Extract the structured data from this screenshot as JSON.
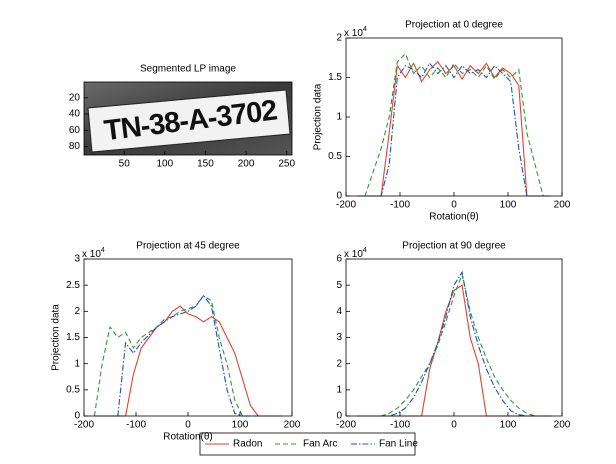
{
  "chart_data": [
    {
      "type": "image",
      "title": "Segmented LP image",
      "image_text": "TN-38-A-3702",
      "xlim": [
        0.5,
        256.5
      ],
      "xticks": [
        50,
        100,
        150,
        200,
        250
      ],
      "ylim": [
        0.5,
        90.5
      ],
      "yticks": [
        20,
        40,
        60,
        80
      ],
      "y_reversed": true
    },
    {
      "type": "line",
      "title": "Projection at 0 degree",
      "xlabel": "Rotation(θ)",
      "ylabel": "Projection data",
      "y_scale_base": "x 10",
      "y_scale_exponent": "4",
      "xlim": [
        -200,
        200
      ],
      "xticks": [
        -200,
        -100,
        0,
        100,
        200
      ],
      "ylim": [
        0,
        20000
      ],
      "yticks": [
        0,
        {
          "value": 5000,
          "label": "0.5"
        },
        {
          "value": 10000,
          "label": "1"
        },
        {
          "value": 15000,
          "label": "1.5"
        },
        {
          "value": 20000,
          "label": "2"
        }
      ],
      "x": [
        -180,
        -165,
        -150,
        -135,
        -120,
        -105,
        -90,
        -75,
        -60,
        -45,
        -30,
        -15,
        0,
        15,
        30,
        45,
        60,
        75,
        90,
        105,
        120,
        135,
        150,
        165,
        180
      ],
      "series": [
        {
          "name": "Radon",
          "color": "#e4422c",
          "linestyle": "-",
          "values": [
            0,
            0,
            0,
            0,
            8000,
            16500,
            15000,
            16800,
            14500,
            16000,
            17000,
            15500,
            16500,
            14800,
            16500,
            15500,
            16800,
            15000,
            16200,
            15500,
            14000,
            0,
            0,
            0,
            0
          ]
        },
        {
          "name": "Fan Arc",
          "color": "#2e9a3c",
          "linestyle": "--",
          "values": [
            0,
            0,
            3000,
            6000,
            10000,
            17000,
            18000,
            15500,
            16500,
            15000,
            16200,
            15000,
            16800,
            15500,
            16000,
            15000,
            16500,
            14800,
            16000,
            15000,
            16000,
            8000,
            4000,
            0,
            0
          ]
        },
        {
          "name": "Fan Line",
          "color": "#2050c0",
          "linestyle": "-.",
          "values": [
            0,
            0,
            0,
            0,
            4000,
            15000,
            16500,
            16000,
            15000,
            16800,
            15500,
            16500,
            15000,
            16500,
            15500,
            16000,
            15000,
            16500,
            15500,
            14500,
            6000,
            0,
            0,
            0,
            0
          ]
        }
      ],
      "legend": "bottom"
    },
    {
      "type": "line",
      "title": "Projection at 45 degree",
      "xlabel": "Rotation(θ)",
      "ylabel": "Projection data",
      "y_scale_base": "x 10",
      "y_scale_exponent": "4",
      "xlim": [
        -200,
        200
      ],
      "xticks": [
        -200,
        -100,
        0,
        100,
        200
      ],
      "ylim": [
        0,
        30000
      ],
      "yticks": [
        0,
        {
          "value": 5000,
          "label": "0.5"
        },
        {
          "value": 10000,
          "label": "1"
        },
        {
          "value": 15000,
          "label": "1.5"
        },
        {
          "value": 20000,
          "label": "2"
        },
        {
          "value": 25000,
          "label": "2.5"
        },
        {
          "value": 30000,
          "label": "3"
        }
      ],
      "x": [
        -180,
        -165,
        -150,
        -135,
        -120,
        -105,
        -90,
        -75,
        -60,
        -45,
        -30,
        -15,
        0,
        15,
        30,
        45,
        60,
        75,
        90,
        105,
        120,
        135,
        150,
        165,
        180
      ],
      "series": [
        {
          "color": "#e4422c",
          "linestyle": "-",
          "values": [
            0,
            0,
            0,
            0,
            0,
            8000,
            13000,
            15000,
            17000,
            18000,
            20000,
            21000,
            19500,
            19000,
            18000,
            19000,
            18000,
            15000,
            12000,
            7000,
            2000,
            0,
            0,
            0,
            0
          ]
        },
        {
          "color": "#2e9a3c",
          "linestyle": "--",
          "values": [
            0,
            10000,
            17000,
            15000,
            16000,
            13000,
            15000,
            16000,
            17000,
            18500,
            19000,
            20000,
            20500,
            21000,
            23000,
            22000,
            15000,
            10000,
            3000,
            0,
            0,
            0,
            0,
            0,
            0
          ]
        },
        {
          "color": "#2050c0",
          "linestyle": "-.",
          "values": [
            0,
            0,
            0,
            0,
            14000,
            12000,
            14000,
            15500,
            17000,
            18000,
            19000,
            19500,
            20000,
            21000,
            23000,
            21000,
            13000,
            5000,
            500,
            0,
            0,
            0,
            0,
            0,
            0
          ]
        }
      ]
    },
    {
      "type": "line",
      "title": "Projection at 90 degree",
      "y_scale_base": "x 10",
      "y_scale_exponent": "4",
      "xlim": [
        -200,
        200
      ],
      "xticks": [
        -200,
        -100,
        0,
        100,
        200
      ],
      "ylim": [
        0,
        60000
      ],
      "yticks": [
        0,
        {
          "value": 10000,
          "label": "1"
        },
        {
          "value": 20000,
          "label": "2"
        },
        {
          "value": 30000,
          "label": "3"
        },
        {
          "value": 40000,
          "label": "4"
        },
        {
          "value": 50000,
          "label": "5"
        },
        {
          "value": 60000,
          "label": "6"
        }
      ],
      "x": [
        -180,
        -165,
        -150,
        -135,
        -120,
        -105,
        -90,
        -75,
        -60,
        -45,
        -30,
        -15,
        0,
        15,
        30,
        45,
        60,
        75,
        90,
        105,
        120,
        135,
        150,
        165,
        180
      ],
      "series": [
        {
          "color": "#e4422c",
          "linestyle": "-",
          "values": [
            0,
            0,
            0,
            0,
            0,
            0,
            0,
            0,
            0,
            18000,
            28000,
            40000,
            48000,
            50000,
            30000,
            20000,
            0,
            0,
            0,
            0,
            0,
            0,
            0,
            0,
            0
          ]
        },
        {
          "color": "#2e9a3c",
          "linestyle": "--",
          "values": [
            0,
            0,
            0,
            0,
            1000,
            3000,
            6000,
            10000,
            15000,
            20000,
            27000,
            36000,
            46000,
            54000,
            40000,
            30000,
            22000,
            15000,
            10000,
            6000,
            3000,
            1000,
            0,
            0,
            0
          ]
        },
        {
          "color": "#2050c0",
          "linestyle": "-.",
          "values": [
            0,
            0,
            0,
            0,
            0,
            1000,
            3000,
            7000,
            13000,
            20000,
            28000,
            38000,
            50000,
            55000,
            38000,
            27000,
            18000,
            11000,
            6000,
            2000,
            500,
            0,
            0,
            0,
            0
          ]
        }
      ]
    }
  ]
}
